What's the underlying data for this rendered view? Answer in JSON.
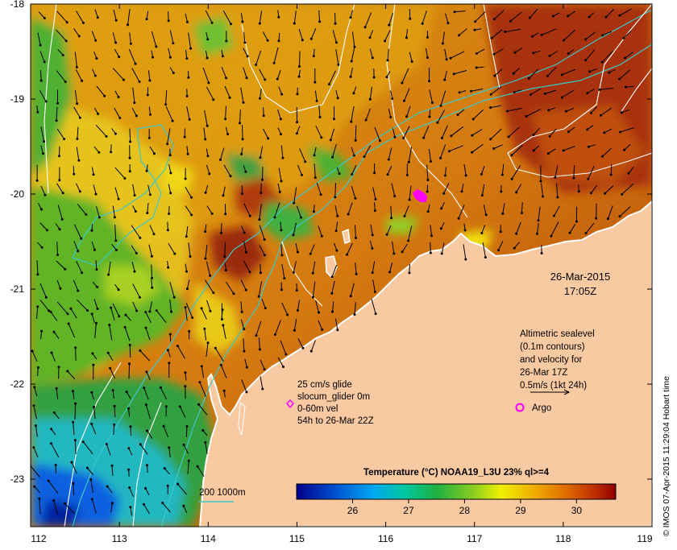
{
  "map": {
    "x_ticks": [
      "112",
      "113",
      "114",
      "115",
      "116",
      "117",
      "118",
      "119"
    ],
    "y_ticks": [
      "-18",
      "-19",
      "-20",
      "-21",
      "-22",
      "-23"
    ],
    "x_range": [
      112,
      119
    ],
    "y_range": [
      -23.5,
      -18
    ],
    "date_line1": "26-Mar-2015",
    "date_line2": "17:05Z",
    "altimetry_lines": [
      "Altimetric sealevel",
      "(0.1m contours)",
      "and velocity for",
      "26-Mar 17Z",
      "0.5m/s (1kt 24h)"
    ],
    "glider_lines": [
      "25 cm/s glide",
      "slocum_glider 0m",
      "0-60m vel",
      "54h to 26-Mar 22Z"
    ],
    "argo_label": "Argo",
    "depth_legend": "200  1000m",
    "colorbar_title": "Temperature (°C) NOAA19_L3U 23% ql>=4",
    "colorbar_ticks": [
      "26",
      "27",
      "28",
      "29",
      "30"
    ],
    "colorbar_tick_values": [
      26,
      27,
      28,
      29,
      30
    ],
    "colorbar_range": [
      25.0,
      30.7
    ],
    "credit": "© IMOS 07-Apr-2015 11:29:04 Hobart time",
    "colors": {
      "land": "#f9c9a2",
      "magenta": "#ff00ff",
      "bathymetry": "#3cc8c8",
      "sealevel_contour": "#ffffff"
    }
  }
}
